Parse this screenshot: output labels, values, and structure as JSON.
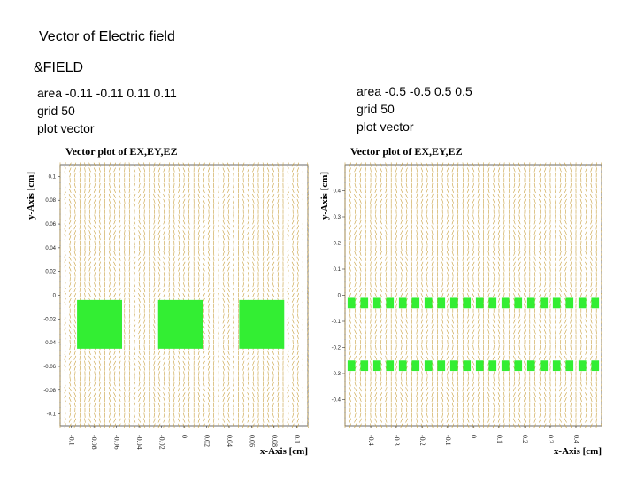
{
  "page": {
    "title": "Vector of Electric field",
    "section": "&FIELD"
  },
  "commands_left": [
    "area -0.11 -0.11 0.11 0.11",
    "grid 50",
    "plot vector"
  ],
  "commands_right": [
    "area -0.5 -0.5 0.5 0.5",
    "grid 50",
    "plot vector"
  ],
  "colors": {
    "vector": "#c8a040",
    "conductor": "#33ee33",
    "axis": "#000000"
  },
  "chart_data": [
    {
      "type": "vector field",
      "title": "Vector plot of EX,EY,EZ",
      "xlabel": "x-Axis [cm]",
      "ylabel": "y-Axis [cm]",
      "xlim": [
        -0.11,
        0.11
      ],
      "ylim": [
        -0.11,
        0.11
      ],
      "grid": 50,
      "yticks": [
        "0.1",
        "0.08",
        "0.06",
        "0.04",
        "0.02",
        "0",
        "-0.02",
        "-0.04",
        "-0.06",
        "-0.08",
        "-0.1"
      ],
      "xticks": [
        "-0.1",
        "-0.08",
        "-0.06",
        "-0.04",
        "-0.02",
        "0",
        "0.02",
        "0.04",
        "0.06",
        "0.08",
        "0.1"
      ],
      "conductors": [
        {
          "x0": -0.095,
          "x1": -0.055,
          "y0": -0.045,
          "y1": -0.004
        },
        {
          "x0": -0.023,
          "x1": 0.017,
          "y0": -0.045,
          "y1": -0.004
        },
        {
          "x0": 0.049,
          "x1": 0.089,
          "y0": -0.045,
          "y1": -0.004
        }
      ]
    },
    {
      "type": "vector field",
      "title": "Vector plot of EX,EY,EZ",
      "xlabel": "x-Axis [cm]",
      "ylabel": "y-Axis [cm]",
      "xlim": [
        -0.5,
        0.5
      ],
      "ylim": [
        -0.5,
        0.5
      ],
      "grid": 50,
      "yticks": [
        "0.4",
        "0.3",
        "0.2",
        "0.1",
        "0",
        "-0.1",
        "-0.2",
        "-0.3",
        "-0.4"
      ],
      "xticks": [
        "-0.4",
        "-0.3",
        "-0.2",
        "-0.1",
        "0",
        "0.1",
        "0.2",
        "0.3",
        "0.4"
      ],
      "conductor_rows": [
        {
          "y0": -0.05,
          "y1": -0.01,
          "count": 20,
          "width": 0.03
        },
        {
          "y0": -0.29,
          "y1": -0.25,
          "count": 20,
          "width": 0.03
        }
      ]
    }
  ]
}
